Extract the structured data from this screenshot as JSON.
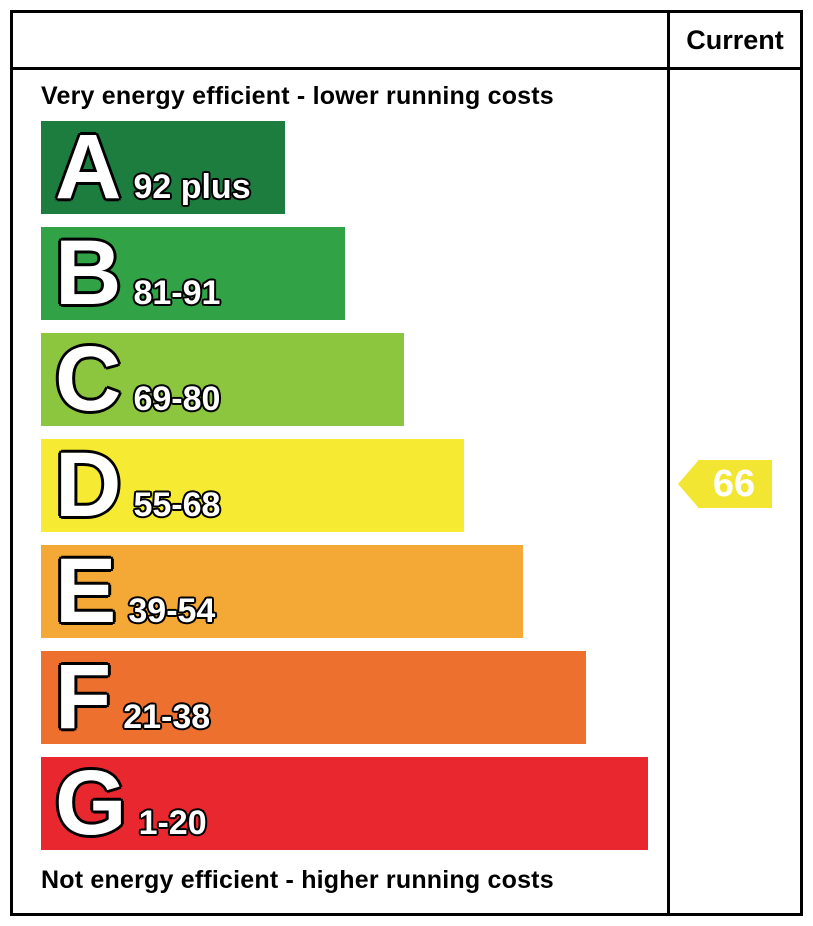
{
  "header": {
    "current_label": "Current"
  },
  "top_text": "Very energy efficient - lower running costs",
  "bottom_text": "Not energy efficient - higher running costs",
  "bands": [
    {
      "letter": "A",
      "range": "92 plus",
      "color": "#1d7d3f",
      "width_pct": 39
    },
    {
      "letter": "B",
      "range": "81-91",
      "color": "#31a245",
      "width_pct": 48.5
    },
    {
      "letter": "C",
      "range": "69-80",
      "color": "#8cc63f",
      "width_pct": 58
    },
    {
      "letter": "D",
      "range": "55-68",
      "color": "#f6eb32",
      "width_pct": 67.5
    },
    {
      "letter": "E",
      "range": "39-54",
      "color": "#f4a836",
      "width_pct": 77
    },
    {
      "letter": "F",
      "range": "21-38",
      "color": "#ed702e",
      "width_pct": 87
    },
    {
      "letter": "G",
      "range": "1-20",
      "color": "#e8272e",
      "width_pct": 97
    }
  ],
  "current": {
    "value": "66",
    "band": "D",
    "arrow_color": "#f3e632"
  },
  "chart_data": {
    "type": "bar",
    "categories": [
      "A",
      "B",
      "C",
      "D",
      "E",
      "F",
      "G"
    ],
    "ranges": [
      "92 plus",
      "81-91",
      "69-80",
      "55-68",
      "39-54",
      "21-38",
      "1-20"
    ],
    "colors": [
      "#1d7d3f",
      "#31a245",
      "#8cc63f",
      "#f6eb32",
      "#f4a836",
      "#ed702e",
      "#e8272e"
    ],
    "bar_width_pct": [
      39,
      48.5,
      58,
      67.5,
      77,
      87,
      97
    ],
    "column_header": "Current",
    "current_value": 66,
    "current_band": "D",
    "top_label": "Very energy efficient - lower running costs",
    "bottom_label": "Not energy efficient - higher running costs",
    "legend_position": "none",
    "grid": false
  }
}
